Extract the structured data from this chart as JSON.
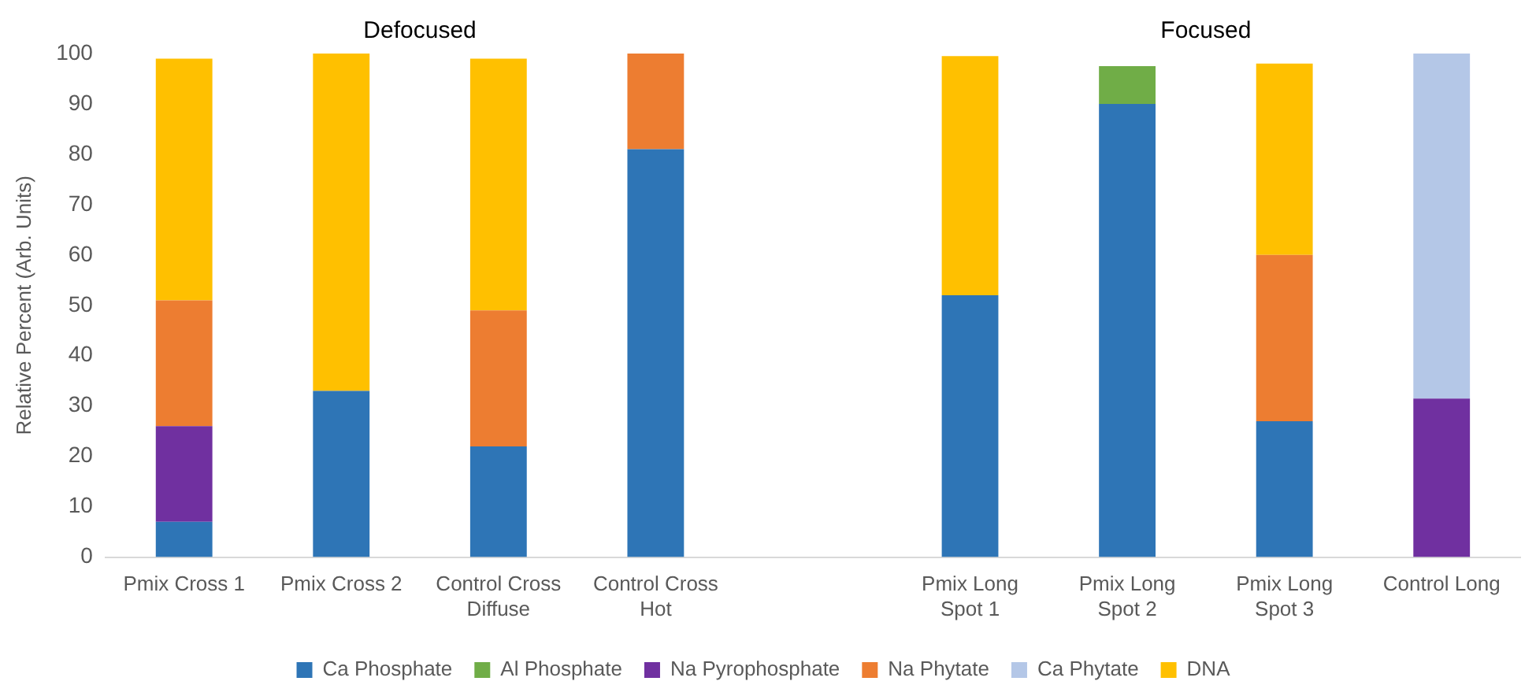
{
  "chart_data": {
    "type": "bar",
    "stacked": true,
    "ylabel": "Relative Percent (Arb. Units)",
    "annotations": [
      "Defocused",
      "Focused"
    ],
    "categories": [
      "Pmix Cross 1",
      "Pmix Cross 2",
      "Control Cross\nDiffuse",
      "Control Cross\nHot",
      null,
      "Pmix Long\nSpot 1",
      "Pmix Long\nSpot 2",
      "Pmix Long\nSpot 3",
      "Control Long"
    ],
    "series": [
      {
        "name": "Ca Phosphate",
        "color": "#2e75b6",
        "values": [
          7,
          33,
          22,
          81,
          null,
          52,
          90,
          27,
          0
        ]
      },
      {
        "name": "Al Phosphate",
        "color": "#70ad47",
        "values": [
          0,
          0,
          0,
          0,
          null,
          0,
          7.5,
          0,
          0
        ]
      },
      {
        "name": "Na Pyrophosphate",
        "color": "#7030a0",
        "values": [
          19,
          0,
          0,
          0,
          null,
          0,
          0,
          0,
          31.5
        ]
      },
      {
        "name": "Na Phytate",
        "color": "#ed7d31",
        "values": [
          25,
          0,
          27,
          19,
          null,
          0,
          0,
          33,
          0
        ]
      },
      {
        "name": "Ca Phytate",
        "color": "#b4c7e7",
        "values": [
          0,
          0,
          0,
          0,
          null,
          0,
          0,
          0,
          68.5
        ]
      },
      {
        "name": "DNA",
        "color": "#ffc000",
        "values": [
          48,
          67,
          50,
          0,
          null,
          47.5,
          0,
          38,
          0
        ]
      }
    ],
    "ylim": [
      0,
      100
    ],
    "yticks": [
      0,
      10,
      20,
      30,
      40,
      50,
      60,
      70,
      80,
      90,
      100
    ],
    "grid": false,
    "legend": "bottom"
  }
}
